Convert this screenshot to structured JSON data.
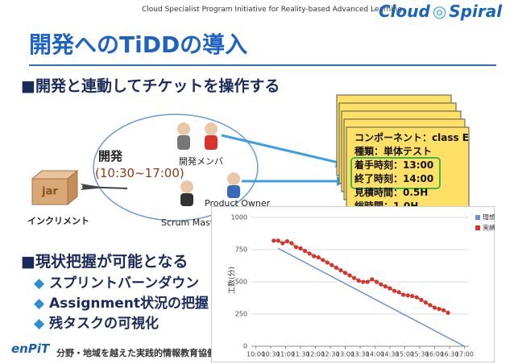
{
  "header": {
    "tagline": "Cloud Specialist Program Initiative for Reality-based Advanced Learning",
    "logo_left": "Cloud",
    "logo_right": "Spiral"
  },
  "title": "開発へのTiDDの導入",
  "bullet_main": "開発と連動してチケットを操作する",
  "diagram": {
    "phase": "開発",
    "time": "(10:30~17:00)",
    "members": "開発メンバ",
    "owner": "Product Owner",
    "master": "Scrum Master",
    "increment": "インクリメント",
    "jar": "jar"
  },
  "card": {
    "lines": [
      "コンポーネント：class E",
      "種類：単体テスト",
      "着手時刻：13:00",
      "終了時刻：14:00",
      "見積時間：0.5H",
      "総時間：1.0H"
    ]
  },
  "bullets": {
    "main": "現状把握が可能となる",
    "items": [
      "スプリントバーンダウン",
      "Assignment状況の把握",
      "残タスクの可視化"
    ]
  },
  "footer": {
    "logo": "enPiT",
    "text": "分野・地域を越えた実践的情報教育協働ネットワーク"
  },
  "chart_data": {
    "type": "line",
    "ylabel": "工数(分)",
    "xlim": [
      9.85,
      17.15
    ],
    "xticks": [
      {
        "value": 10,
        "label": "10:00"
      },
      {
        "value": 10.5,
        "label": "10:30"
      },
      {
        "value": 11,
        "label": "11:00"
      },
      {
        "value": 11.5,
        "label": "11:30"
      },
      {
        "value": 12,
        "label": "12:00"
      },
      {
        "value": 12.5,
        "label": "12:30"
      },
      {
        "value": 13,
        "label": "13:00"
      },
      {
        "value": 13.5,
        "label": "13:30"
      },
      {
        "value": 14,
        "label": "14:00"
      },
      {
        "value": 14.5,
        "label": "14:30"
      },
      {
        "value": 15,
        "label": "15:00"
      },
      {
        "value": 15.5,
        "label": "15:30"
      },
      {
        "value": 16,
        "label": "16:00"
      },
      {
        "value": 16.5,
        "label": "16:30"
      },
      {
        "value": 17,
        "label": "17:00"
      }
    ],
    "ylim": [
      0,
      1000
    ],
    "yticks": [
      0,
      250,
      500,
      750,
      1000
    ],
    "grid": true,
    "legend": "right",
    "series": [
      {
        "name": "理想",
        "color": "#6f8fd8",
        "marker": false,
        "x": [
          10.75,
          17
        ],
        "values": [
          760,
          0
        ]
      },
      {
        "name": "実績",
        "color": "#d9342b",
        "marker": true,
        "x": [
          10.6,
          10.75,
          10.9,
          11.05,
          11.2,
          11.35,
          11.5,
          11.65,
          11.8,
          11.95,
          12.1,
          12.25,
          12.4,
          12.55,
          12.7,
          12.85,
          13.0,
          13.15,
          13.3,
          13.45,
          13.6,
          13.75,
          13.9,
          14.05,
          14.2,
          14.35,
          14.5,
          14.65,
          14.8,
          14.95,
          15.1,
          15.25,
          15.4,
          15.55,
          15.7,
          15.85,
          16.0,
          16.15,
          16.3,
          16.45
        ],
        "values": [
          820,
          820,
          800,
          815,
          800,
          770,
          760,
          740,
          720,
          700,
          690,
          670,
          650,
          630,
          610,
          590,
          570,
          550,
          530,
          510,
          500,
          500,
          520,
          500,
          480,
          465,
          450,
          430,
          420,
          400,
          395,
          390,
          380,
          360,
          340,
          320,
          300,
          290,
          280,
          260
        ]
      }
    ]
  }
}
